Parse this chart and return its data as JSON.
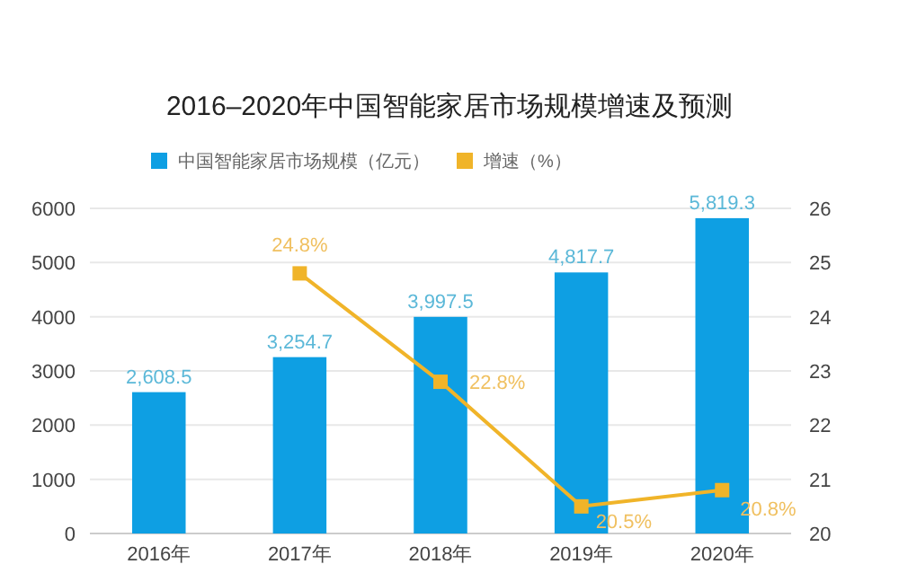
{
  "chart_data": {
    "type": "bar",
    "title": "2016–2020年中国智能家居市场规模增速及预测",
    "categories": [
      "2016年",
      "2017年",
      "2018年",
      "2019年",
      "2020年"
    ],
    "series": [
      {
        "name": "中国智能家居市场规模（亿元）",
        "color": "#0e9fe3",
        "values": [
          2608.5,
          3254.7,
          3997.5,
          4817.7,
          5819.3
        ],
        "value_labels": [
          "2,608.5",
          "3,254.7",
          "3,997.5",
          "4,817.7",
          "5,819.3"
        ]
      },
      {
        "name": "增速（%）",
        "type": "line",
        "axis": "y2",
        "color": "#f0b429",
        "values": [
          null,
          24.8,
          22.8,
          20.5,
          20.8
        ],
        "value_labels": [
          null,
          "24.8%",
          "22.8%",
          "20.5%",
          "20.8%"
        ]
      }
    ],
    "ylim": [
      0,
      6000
    ],
    "yticks": [
      0,
      1000,
      2000,
      3000,
      4000,
      5000,
      6000
    ],
    "y2lim": [
      20,
      26
    ],
    "y2ticks": [
      20,
      21,
      22,
      23,
      24,
      25,
      26
    ],
    "grid": "y",
    "legend": "top",
    "marker": "square"
  }
}
